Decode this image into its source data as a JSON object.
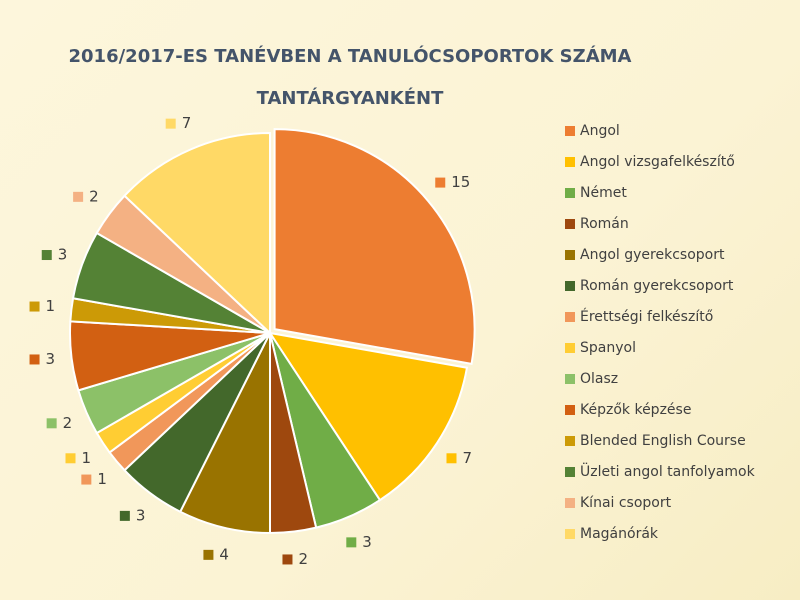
{
  "chart_data": {
    "type": "pie",
    "title": "2016/2017-ES TANÉVBEN A TANULÓCSOPORTOK SZÁMA TANTÁRGYANKÉNT",
    "categories": [
      "Angol",
      "Angol vizsgafelkészítő",
      "Német",
      "Román",
      "Angol gyerekcsoport",
      "Román gyerekcsoport",
      "Érettségi felkészítő",
      "Spanyol",
      "Olasz",
      "Képzők képzése",
      "Blended English Course",
      "Üzleti angol tanfolyamok",
      "Kínai csoport",
      "Magánórák"
    ],
    "values": [
      15,
      7,
      3,
      2,
      4,
      3,
      1,
      1,
      2,
      3,
      1,
      3,
      2,
      7
    ],
    "colors": [
      "#ED7D31",
      "#FFC000",
      "#70AD47",
      "#9E480E",
      "#997300",
      "#43682B",
      "#F1975A",
      "#FFCD33",
      "#8CC168",
      "#D26012",
      "#CC9A06",
      "#548235",
      "#F4B183",
      "#FFD966"
    ],
    "legend": "right"
  }
}
